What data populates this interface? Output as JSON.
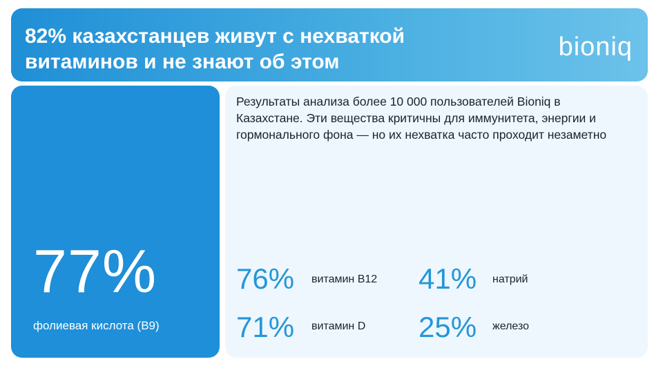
{
  "header": {
    "title_line1": "82% казахстанцев живут с нехваткой",
    "title_line2": "витаминов и не знают об этом",
    "brand": "bioniq"
  },
  "highlight": {
    "value": "77%",
    "label": "фолиевая кислота (B9)"
  },
  "description": "Результаты анализа более 10 000 пользователей Bioniq в Казахстане. Эти вещества критичны для иммунитета, энергии и гормонального фона — но их нехватка часто проходит незаметно",
  "stats": [
    {
      "value": "76%",
      "label": "витамин B12"
    },
    {
      "value": "41%",
      "label": "натрий"
    },
    {
      "value": "71%",
      "label": "витамин D"
    },
    {
      "value": "25%",
      "label": "железо"
    }
  ],
  "colors": {
    "accent": "#1e8fd8",
    "stat_text": "#2596d8",
    "panel_bg": "#eef7fd"
  }
}
